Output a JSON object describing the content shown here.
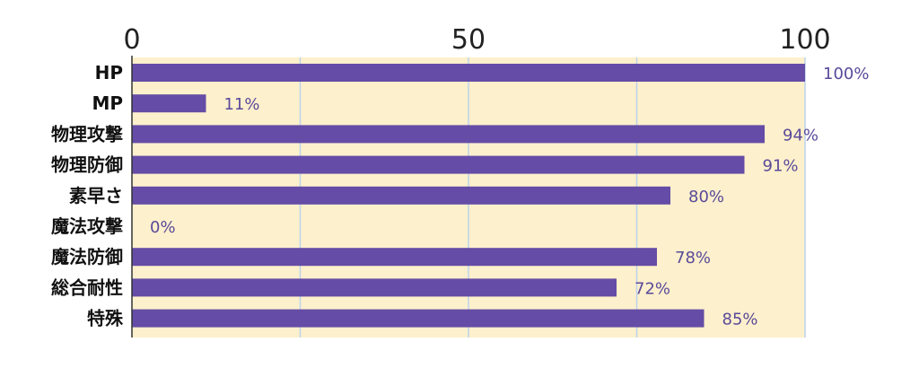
{
  "chart_data": {
    "type": "bar",
    "orientation": "horizontal",
    "title": "",
    "xlabel": "",
    "ylabel": "",
    "xlim": [
      0,
      100
    ],
    "x_ticks": [
      "0",
      "50",
      "100"
    ],
    "x_tick_values": [
      0,
      50,
      100
    ],
    "grid": true,
    "categories": [
      "HP",
      "MP",
      "物理攻撃",
      "物理防御",
      "素早さ",
      "魔法攻撃",
      "魔法防御",
      "総合耐性",
      "特殊"
    ],
    "values": [
      100,
      11,
      94,
      91,
      80,
      0,
      78,
      72,
      85
    ],
    "value_labels": [
      "100%",
      "11%",
      "94%",
      "91%",
      "80%",
      "0%",
      "78%",
      "72%",
      "85%"
    ],
    "colors": {
      "bar": "#654ca6",
      "plot_background": "#fdf0cc",
      "grid": "#bcd3ea",
      "axis": "#333333",
      "data_label": "#5a4a9a"
    }
  }
}
